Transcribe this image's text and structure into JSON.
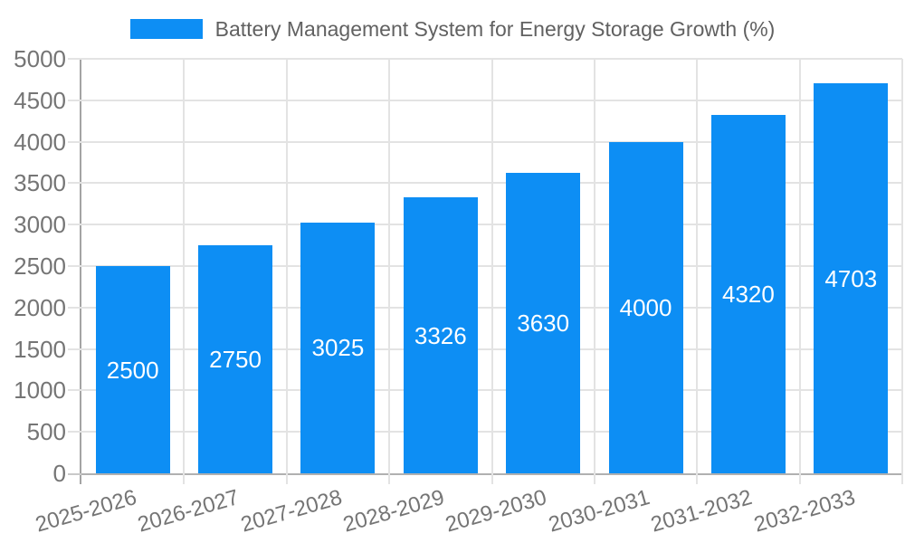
{
  "title": "Battery Management System for Energy Storage Growth (%)",
  "legend": {
    "position": "top",
    "items": [
      {
        "label": "Battery Management System for Energy Storage Growth (%)",
        "swatch_color": "#0d8ef4"
      }
    ]
  },
  "chart_data": {
    "type": "bar",
    "title": "Battery Management System for Energy Storage Growth (%)",
    "categories": [
      "2025-2026",
      "2026-2027",
      "2027-2028",
      "2028-2029",
      "2029-2030",
      "2030-2031",
      "2031-2032",
      "2032-2033"
    ],
    "values": [
      2500,
      2750,
      3025,
      3326,
      3630,
      4000,
      4320,
      4703
    ],
    "bar_value_labels": [
      "2500",
      "2750",
      "3025",
      "3326",
      "3630",
      "4000",
      "4320",
      "4703"
    ],
    "xlabel": "",
    "ylabel": "",
    "ylim": [
      0,
      5000
    ],
    "yticks": [
      0,
      500,
      1000,
      1500,
      2000,
      2500,
      3000,
      3500,
      4000,
      4500,
      5000
    ],
    "grid": true,
    "legend_position": "top",
    "x_label_rotation_deg": -16
  },
  "colors": {
    "bar": "#0d8ef4",
    "bar_label": "#ffffff",
    "axis_text": "#757575",
    "title_text": "#616161",
    "gridline": "#e3e3e3",
    "axis_line": "#a4a4a4",
    "background": "#ffffff"
  }
}
